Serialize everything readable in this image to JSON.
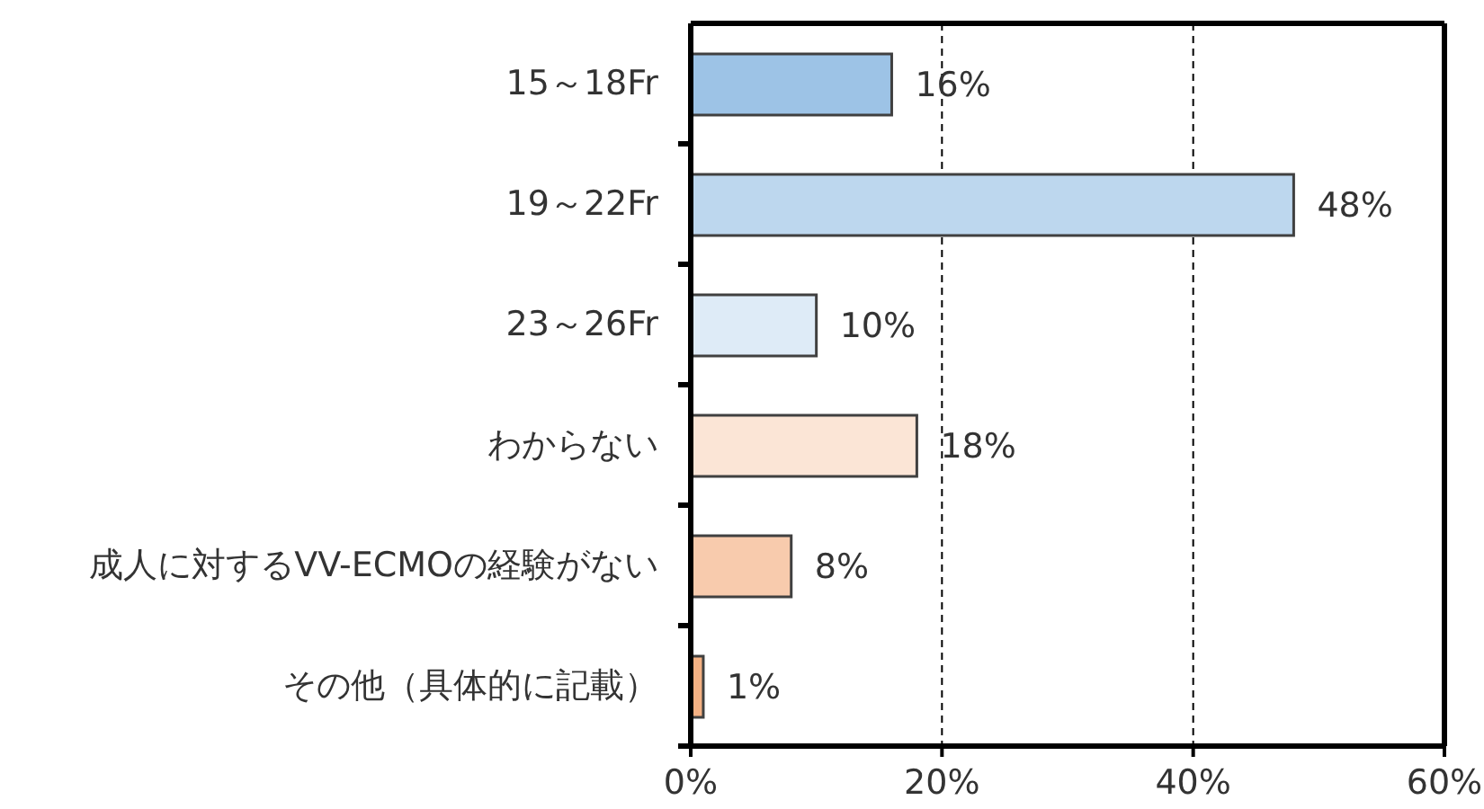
{
  "chart_data": {
    "type": "bar",
    "orientation": "horizontal",
    "categories": [
      "15～18Fr",
      "19～22Fr",
      "23～26Fr",
      "わからない",
      "成人に対するVV-ECMOの経験がない",
      "その他（具体的に記載）"
    ],
    "values": [
      16,
      48,
      10,
      18,
      8,
      1
    ],
    "colors": [
      "#9dc3e6",
      "#bdd7ee",
      "#deebf7",
      "#fbe5d6",
      "#f8cbad",
      "#f4b183"
    ],
    "value_labels": [
      "16%",
      "48%",
      "10%",
      "18%",
      "8%",
      "1%"
    ],
    "xlim": [
      0,
      60
    ],
    "xticks": [
      {
        "value": 0,
        "label": "0%"
      },
      {
        "value": 20,
        "label": "20%"
      },
      {
        "value": 40,
        "label": "40%"
      },
      {
        "value": 60,
        "label": "60%"
      }
    ],
    "grid": "x"
  }
}
